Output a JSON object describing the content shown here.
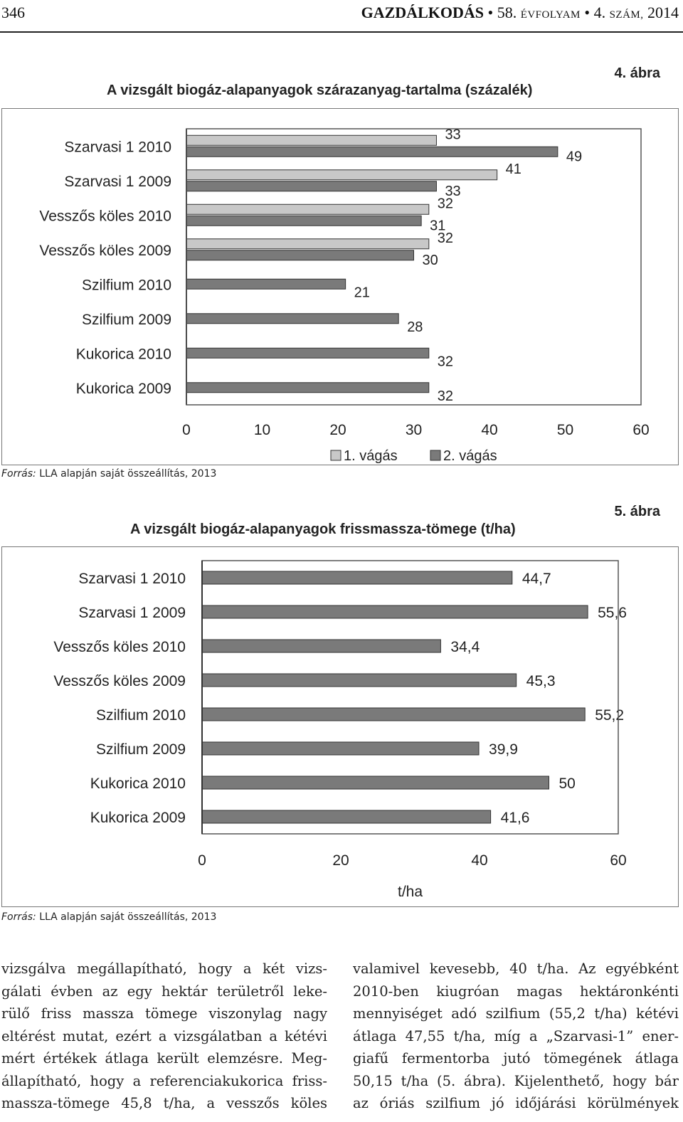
{
  "header": {
    "page_number": "346",
    "journal": "GAZDÁLKODÁS",
    "volume_number": "58.",
    "volume_label": "ÉVFOLYAM",
    "issue_number": "4.",
    "issue_label": "SZÁM,",
    "year": "2014",
    "bullet": "•"
  },
  "figure4": {
    "number": "4. ábra",
    "title": "A vizsgált biogáz-alapanyagok szárazanyag-tartalma (százalék)",
    "source_label": "Forrás:",
    "source_text": "LLA alapján saját összeállítás, 2013"
  },
  "figure5": {
    "number": "5. ábra",
    "title": "A vizsgált biogáz-alapanyagok frissmassza-tömege (t/ha)",
    "source_label": "Forrás:",
    "source_text": "LLA alapján saját összeállítás, 2013"
  },
  "chart_data": [
    {
      "type": "bar",
      "orientation": "horizontal",
      "title": "A vizsgált biogáz-alapanyagok szárazanyag-tartalma (százalék)",
      "categories": [
        "Szarvasi 1 2010",
        "Szarvasi 1 2009",
        "Vesszős köles 2010",
        "Vesszős köles 2009",
        "Szilfium 2010",
        "Szilfium 2009",
        "Kukorica 2010",
        "Kukorica 2009"
      ],
      "series": [
        {
          "name": "1. vágás",
          "values": [
            33,
            41,
            32,
            32,
            null,
            null,
            null,
            null
          ],
          "labels": [
            "33",
            "41",
            "32",
            "32",
            "",
            "",
            "",
            ""
          ],
          "color": "#c8c8c8"
        },
        {
          "name": "2. vágás",
          "values": [
            49,
            33,
            31,
            30,
            21,
            28,
            32,
            32
          ],
          "labels": [
            "49",
            "33",
            "31",
            "30",
            "21",
            "28",
            "32",
            "32"
          ],
          "color": "#7a7a7a"
        }
      ],
      "xlim": [
        0,
        60
      ],
      "xticks": [
        "0",
        "10",
        "20",
        "30",
        "40",
        "50",
        "60"
      ],
      "xlabel": "",
      "legend_position": "bottom"
    },
    {
      "type": "bar",
      "orientation": "horizontal",
      "title": "A vizsgált biogáz-alapanyagok frissmassza-tömege (t/ha)",
      "categories": [
        "Szarvasi 1 2010",
        "Szarvasi 1 2009",
        "Vesszős köles 2010",
        "Vesszős köles 2009",
        "Szilfium 2010",
        "Szilfium 2009",
        "Kukorica 2010",
        "Kukorica 2009"
      ],
      "series": [
        {
          "name": "frissmassza-tömeg",
          "values": [
            44.7,
            55.6,
            34.4,
            45.3,
            55.2,
            39.9,
            50,
            41.6
          ],
          "labels": [
            "44,7",
            "55,6",
            "34,4",
            "45,3",
            "55,2",
            "39,9",
            "50",
            "41,6"
          ],
          "color": "#7a7a7a"
        }
      ],
      "xlim": [
        0,
        60
      ],
      "xticks": [
        "0",
        "20",
        "40",
        "60"
      ],
      "xlabel": "t/ha"
    }
  ],
  "body": {
    "col1": [
      "vizsgálva megállapítható, hogy a két vizs-",
      "gálati évben az egy hektár területről leke-",
      "rülő friss massza tömege viszonylag nagy",
      "eltérést mutat, ezért a vizsgálatban a kétévi",
      "mért értékek átlaga került elemzésre. Meg-",
      "állapítható, hogy a referenciakukorica friss-",
      "massza-tömege 45,8 t/ha, a vesszős köles"
    ],
    "col2": [
      "valamivel kevesebb, 40 t/ha. Az egyébként",
      "2010-ben kiugróan magas hektáronkénti",
      "mennyiséget adó szilfium (55,2 t/ha) kétévi",
      "átlaga 47,55 t/ha, míg a „Szarvasi-1” ener-",
      "giafű fermentorba jutó tömegének átlaga",
      "50,15 t/ha (5. ábra). Kijelenthető, hogy bár",
      "az óriás szilfium jó időjárási körülmények"
    ]
  }
}
